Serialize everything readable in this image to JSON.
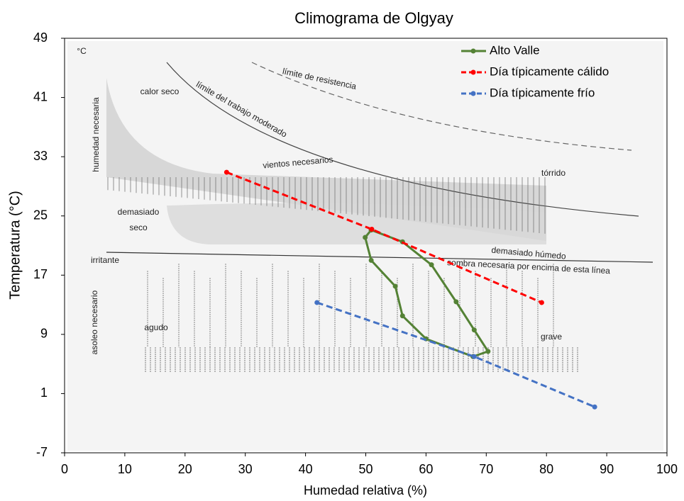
{
  "chart_data": {
    "type": "line",
    "title": "Climograma de Olgyay",
    "x_label": "Humedad relativa (%)",
    "y_label": "Temperatura (°C)",
    "xlim": [
      0,
      100
    ],
    "xticks": [
      0,
      10,
      20,
      30,
      40,
      50,
      60,
      70,
      80,
      90,
      100
    ],
    "ylim": [
      -7,
      49
    ],
    "yticks": [
      -7,
      1,
      9,
      17,
      25,
      33,
      41,
      49
    ],
    "legend": "top-right",
    "series": [
      {
        "name": "Alto Valle",
        "color": "#548235",
        "dashed": false,
        "x": [
          50.9,
          56.1,
          60.9,
          65.0,
          68.0,
          70.3,
          67.8,
          60.0,
          56.1,
          54.9,
          50.9,
          49.9,
          50.9
        ],
        "values": [
          23.1,
          21.5,
          18.4,
          13.4,
          9.6,
          6.7,
          6.0,
          8.4,
          11.5,
          15.5,
          19.0,
          22.1,
          23.1
        ]
      },
      {
        "name": "Día típicamente cálido",
        "color": "#ff0000",
        "dashed": true,
        "x": [
          26.9,
          51.0,
          79.2
        ],
        "values": [
          30.9,
          23.2,
          13.3
        ]
      },
      {
        "name": "Día típicamente frío",
        "color": "#4472c4",
        "dashed": true,
        "x": [
          41.9,
          68.0,
          88.0
        ],
        "values": [
          13.3,
          6.0,
          -0.8
        ]
      }
    ],
    "annotations": [
      "°C",
      "humedad necesaria",
      "calor seco",
      "límite del trabajo moderado",
      "límite de resistencia",
      "vientos necesarios",
      "tórrido",
      "demasiado",
      "seco",
      "demasiado húmedo",
      "sombra necesaria por encima de esta línea",
      "irritante",
      "asoleo necesario",
      "agudo",
      "grave"
    ]
  }
}
